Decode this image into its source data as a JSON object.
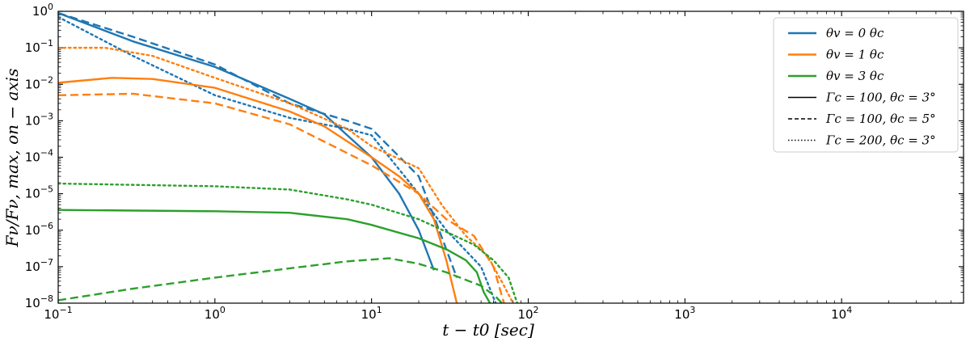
{
  "chart_data": {
    "type": "line",
    "xscale": "log",
    "yscale": "log",
    "xlim": [
      0.1,
      60000
    ],
    "ylim": [
      1e-08,
      1
    ],
    "xlabel": "t − t0   [sec]",
    "ylabel": "Fν/Fν, max, on − axis",
    "grid": false,
    "legend_placement": "top-right",
    "x_ticks": [
      {
        "value": 0.1,
        "base": "10",
        "exp": "−1"
      },
      {
        "value": 1,
        "base": "10",
        "exp": "0"
      },
      {
        "value": 10,
        "base": "10",
        "exp": "1"
      },
      {
        "value": 100,
        "base": "10",
        "exp": "2"
      },
      {
        "value": 1000,
        "base": "10",
        "exp": "3"
      },
      {
        "value": 10000,
        "base": "10",
        "exp": "4"
      }
    ],
    "y_ticks": [
      {
        "value": 1e-08,
        "base": "10",
        "exp": "−8"
      },
      {
        "value": 1e-07,
        "base": "10",
        "exp": "−7"
      },
      {
        "value": 1e-06,
        "base": "10",
        "exp": "−6"
      },
      {
        "value": 1e-05,
        "base": "10",
        "exp": "−5"
      },
      {
        "value": 0.0001,
        "base": "10",
        "exp": "−4"
      },
      {
        "value": 0.001,
        "base": "10",
        "exp": "−3"
      },
      {
        "value": 0.01,
        "base": "10",
        "exp": "−2"
      },
      {
        "value": 0.1,
        "base": "10",
        "exp": "−1"
      },
      {
        "value": 1,
        "base": "10",
        "exp": "0"
      }
    ],
    "colors": {
      "theta0": "#1f77b4",
      "theta1": "#ff7f0e",
      "theta3": "#2ca02c",
      "axis": "#000000"
    },
    "legend": [
      {
        "label": "θv = 0 θc",
        "color": "#1f77b4",
        "style": "solid"
      },
      {
        "label": "θv = 1 θc",
        "color": "#ff7f0e",
        "style": "solid"
      },
      {
        "label": "θv = 3 θc",
        "color": "#2ca02c",
        "style": "solid"
      },
      {
        "label": "Γc = 100, θc = 3°",
        "color": "#000000",
        "style": "solid"
      },
      {
        "label": "Γc = 100, θc = 5°",
        "color": "#000000",
        "style": "dashed"
      },
      {
        "label": "Γc = 200, θc = 3°",
        "color": "#000000",
        "style": "dotted"
      }
    ],
    "series": [
      {
        "color": "#1f77b4",
        "style": "solid",
        "points": [
          [
            0.1,
            0.9
          ],
          [
            0.3,
            0.15
          ],
          [
            1,
            0.03
          ],
          [
            3,
            0.004
          ],
          [
            5,
            0.0015
          ],
          [
            7,
            0.0004
          ],
          [
            10,
            0.0001
          ],
          [
            15,
            1e-05
          ],
          [
            20,
            1e-06
          ],
          [
            25,
            8e-08
          ]
        ]
      },
      {
        "color": "#1f77b4",
        "style": "dashed",
        "points": [
          [
            0.1,
            0.9
          ],
          [
            0.3,
            0.2
          ],
          [
            1,
            0.035
          ],
          [
            3,
            0.003
          ],
          [
            7,
            0.001
          ],
          [
            10,
            0.0006
          ],
          [
            20,
            3e-05
          ],
          [
            27,
            1e-06
          ],
          [
            35,
            5e-08
          ]
        ]
      },
      {
        "color": "#1f77b4",
        "style": "dotted",
        "points": [
          [
            0.1,
            0.7
          ],
          [
            0.3,
            0.06
          ],
          [
            1,
            0.005
          ],
          [
            3,
            0.0012
          ],
          [
            7,
            0.0006
          ],
          [
            10,
            0.0004
          ],
          [
            20,
            1e-05
          ],
          [
            30,
            1e-06
          ],
          [
            50,
            1e-07
          ],
          [
            62,
            1e-08
          ]
        ]
      },
      {
        "color": "#ff7f0e",
        "style": "solid",
        "points": [
          [
            0.1,
            0.011
          ],
          [
            0.22,
            0.015
          ],
          [
            0.4,
            0.014
          ],
          [
            1,
            0.008
          ],
          [
            3,
            0.0018
          ],
          [
            5,
            0.0007
          ],
          [
            10,
            0.0001
          ],
          [
            15,
            3e-05
          ],
          [
            20,
            1e-05
          ],
          [
            25,
            2e-06
          ],
          [
            30,
            1.5e-07
          ],
          [
            35,
            1e-08
          ]
        ]
      },
      {
        "color": "#ff7f0e",
        "style": "dashed",
        "points": [
          [
            0.1,
            0.005
          ],
          [
            0.3,
            0.0055
          ],
          [
            1,
            0.003
          ],
          [
            3,
            0.0008
          ],
          [
            10,
            6e-05
          ],
          [
            20,
            1e-05
          ],
          [
            30,
            2e-06
          ],
          [
            45,
            7e-07
          ],
          [
            60,
            1e-07
          ],
          [
            70,
            1e-08
          ]
        ]
      },
      {
        "color": "#ff7f0e",
        "style": "dotted",
        "points": [
          [
            0.1,
            0.1
          ],
          [
            0.2,
            0.1
          ],
          [
            0.4,
            0.06
          ],
          [
            1,
            0.015
          ],
          [
            3,
            0.003
          ],
          [
            7,
            0.0006
          ],
          [
            10,
            0.0002
          ],
          [
            20,
            5e-05
          ],
          [
            28,
            5e-06
          ],
          [
            40,
            7e-07
          ],
          [
            55,
            2e-07
          ],
          [
            70,
            3e-08
          ],
          [
            80,
            1e-08
          ]
        ]
      },
      {
        "color": "#2ca02c",
        "style": "solid",
        "points": [
          [
            0.1,
            3.6e-06
          ],
          [
            1,
            3.3e-06
          ],
          [
            3,
            3e-06
          ],
          [
            7,
            2e-06
          ],
          [
            10,
            1.4e-06
          ],
          [
            20,
            6e-07
          ],
          [
            30,
            3e-07
          ],
          [
            40,
            1.5e-07
          ],
          [
            47,
            7e-08
          ],
          [
            52,
            2e-08
          ],
          [
            57,
            1e-08
          ]
        ]
      },
      {
        "color": "#2ca02c",
        "style": "dashed",
        "points": [
          [
            0.1,
            1.2e-08
          ],
          [
            0.3,
            2.5e-08
          ],
          [
            1,
            5e-08
          ],
          [
            3,
            9e-08
          ],
          [
            7,
            1.4e-07
          ],
          [
            13,
            1.7e-07
          ],
          [
            20,
            1.2e-07
          ],
          [
            30,
            7e-08
          ],
          [
            50,
            3e-08
          ],
          [
            62,
            1.5e-08
          ],
          [
            68,
            1e-08
          ]
        ]
      },
      {
        "color": "#2ca02c",
        "style": "dotted",
        "points": [
          [
            0.1,
            1.9e-05
          ],
          [
            1,
            1.6e-05
          ],
          [
            3,
            1.3e-05
          ],
          [
            7,
            7e-06
          ],
          [
            10,
            5e-06
          ],
          [
            20,
            2e-06
          ],
          [
            30,
            9e-07
          ],
          [
            45,
            4e-07
          ],
          [
            60,
            1.5e-07
          ],
          [
            75,
            5e-08
          ],
          [
            85,
            1e-08
          ]
        ]
      }
    ]
  }
}
